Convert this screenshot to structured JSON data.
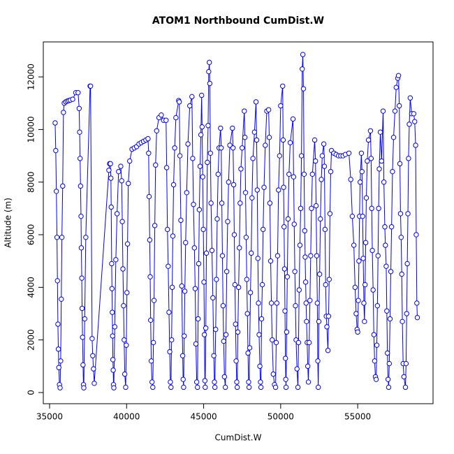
{
  "chart_data": {
    "type": "line",
    "marker": "circle",
    "title": "ATOM1 Northbound CumDist.W",
    "x_label": "CumDist.W",
    "y_label": "Altitude (m)",
    "color": "#0000ff",
    "x": [
      35360,
      35400,
      35440,
      35480,
      35510,
      35540,
      35570,
      35600,
      35640,
      35680,
      35720,
      35760,
      35800,
      35850,
      35900,
      35950,
      36050,
      36150,
      36250,
      36350,
      36500,
      36700,
      36850,
      36920,
      36950,
      36980,
      37010,
      37040,
      37060,
      37090,
      37110,
      37140,
      37170,
      37200,
      37220,
      37280,
      37350,
      37630,
      37660,
      37760,
      37800,
      37850,
      37900,
      38850,
      38900,
      38950,
      38980,
      39000,
      39030,
      39050,
      39070,
      39090,
      39110,
      39130,
      39150,
      39170,
      39230,
      39300,
      39380,
      39480,
      39620,
      39680,
      39720,
      39760,
      39800,
      39840,
      39880,
      39940,
      39980,
      40020,
      40060,
      40110,
      40200,
      40350,
      40500,
      40650,
      40800,
      40950,
      41100,
      41250,
      41390,
      41430,
      41460,
      41500,
      41530,
      41560,
      41600,
      41650,
      41700,
      41740,
      41780,
      41830,
      41880,
      41950,
      42100,
      42250,
      42400,
      42560,
      42600,
      42650,
      42700,
      42750,
      42800,
      42840,
      42880,
      42920,
      42960,
      43000,
      43050,
      43120,
      43200,
      43380,
      43420,
      43460,
      43520,
      43580,
      43640,
      43670,
      43700,
      43740,
      43780,
      43830,
      43900,
      43980,
      44100,
      44240,
      44290,
      44340,
      44400,
      44450,
      44500,
      44550,
      44600,
      44640,
      44680,
      44720,
      44770,
      44820,
      44870,
      44900,
      44940,
      44980,
      45020,
      45050,
      45080,
      45100,
      45140,
      45180,
      45240,
      45290,
      45330,
      45370,
      45400,
      45440,
      45480,
      45540,
      45600,
      45660,
      45700,
      45730,
      45780,
      45830,
      45880,
      45940,
      46000,
      46100,
      46140,
      46180,
      46220,
      46260,
      46300,
      46350,
      46410,
      46450,
      46500,
      46560,
      46620,
      46700,
      46870,
      46910,
      46950,
      46990,
      47030,
      47070,
      47110,
      47150,
      47180,
      47220,
      47270,
      47320,
      47370,
      47420,
      47500,
      47640,
      47680,
      47720,
      47760,
      47800,
      47840,
      47880,
      47920,
      47950,
      47990,
      48040,
      48090,
      48140,
      48200,
      48300,
      48400,
      48440,
      48480,
      48520,
      48560,
      48600,
      48650,
      48690,
      48720,
      48760,
      48810,
      48860,
      48920,
      49000,
      49100,
      49220,
      49260,
      49300,
      49350,
      49400,
      49450,
      49520,
      49600,
      49670,
      49710,
      49750,
      49800,
      49860,
      49930,
      50000,
      50130,
      50160,
      50190,
      50220,
      50250,
      50280,
      50310,
      50330,
      50350,
      50390,
      50430,
      50480,
      50540,
      50620,
      50800,
      50840,
      50880,
      50920,
      50960,
      51000,
      51060,
      51120,
      51160,
      51200,
      51250,
      51300,
      51350,
      51400,
      51440,
      51480,
      51520,
      51560,
      51590,
      51620,
      51650,
      51680,
      51720,
      51760,
      51800,
      51850,
      51900,
      51950,
      52000,
      52060,
      52210,
      52260,
      52300,
      52340,
      52380,
      52410,
      52440,
      52480,
      52530,
      52580,
      52640,
      52700,
      52800,
      52840,
      52880,
      52920,
      52960,
      53000,
      53070,
      53110,
      53150,
      53200,
      53250,
      53300,
      53450,
      53600,
      53750,
      53900,
      54050,
      54200,
      54430,
      54550,
      54650,
      54750,
      54830,
      54900,
      54960,
      55000,
      55040,
      55080,
      55120,
      55160,
      55240,
      55280,
      55320,
      55360,
      55400,
      55440,
      55480,
      55520,
      55560,
      55620,
      55700,
      55830,
      55870,
      55910,
      55950,
      56000,
      56050,
      56100,
      56150,
      56200,
      56240,
      56280,
      56320,
      56360,
      56400,
      56470,
      56550,
      56650,
      56700,
      56760,
      56800,
      56850,
      56890,
      56930,
      56970,
      57010,
      57050,
      57100,
      57150,
      57200,
      57260,
      57330,
      57420,
      57500,
      57600,
      57650,
      57700,
      57740,
      57780,
      57820,
      57860,
      57900,
      57950,
      58000,
      58100,
      58140,
      58180,
      58220,
      58260,
      58300,
      58350,
      58410,
      58500,
      58640,
      58700,
      58760,
      58800,
      58840,
      58870
    ],
    "values": [
      10250,
      9200,
      7650,
      5900,
      4250,
      2600,
      1650,
      950,
      300,
      180,
      1200,
      3550,
      5900,
      7850,
      10650,
      11000,
      11050,
      11080,
      11100,
      11120,
      11150,
      11400,
      11400,
      10800,
      9900,
      8900,
      7850,
      6700,
      5500,
      4350,
      3200,
      2100,
      1050,
      300,
      180,
      2800,
      5900,
      11650,
      11650,
      2050,
      1400,
      900,
      350,
      8450,
      8700,
      8700,
      8150,
      7050,
      4900,
      3950,
      3050,
      2150,
      1250,
      850,
      300,
      180,
      2500,
      5050,
      6800,
      8400,
      8600,
      8050,
      6500,
      4700,
      3300,
      2000,
      700,
      200,
      1800,
      3800,
      5650,
      7950,
      8800,
      9250,
      9300,
      9350,
      9450,
      9500,
      9550,
      9600,
      9650,
      9100,
      7450,
      5800,
      4400,
      2750,
      1200,
      400,
      200,
      1900,
      3500,
      6350,
      8650,
      9950,
      10450,
      10550,
      10350,
      10350,
      8550,
      6200,
      4800,
      3050,
      1550,
      400,
      200,
      2000,
      4000,
      5950,
      7900,
      9300,
      10450,
      11100,
      11050,
      9000,
      6550,
      4050,
      1400,
      500,
      200,
      2150,
      3850,
      5700,
      7600,
      9450,
      10900,
      11250,
      8900,
      7150,
      5500,
      3950,
      1850,
      400,
      200,
      2800,
      4900,
      6950,
      8600,
      9800,
      11300,
      10100,
      8200,
      6200,
      4200,
      2200,
      450,
      200,
      2450,
      5300,
      8750,
      10150,
      12200,
      12550,
      11750,
      9100,
      7200,
      5400,
      3600,
      1400,
      400,
      200,
      2400,
      4300,
      6600,
      8300,
      9300,
      10050,
      9300,
      7200,
      5200,
      3300,
      1950,
      600,
      200,
      2200,
      4600,
      6500,
      8000,
      9400,
      10050,
      9300,
      7900,
      6000,
      4100,
      2600,
      1200,
      400,
      200,
      2300,
      4000,
      5500,
      7200,
      8500,
      9300,
      10700,
      9700,
      7600,
      5900,
      4300,
      3000,
      1500,
      400,
      200,
      1700,
      3800,
      5300,
      7400,
      8900,
      9900,
      11050,
      9600,
      7700,
      5100,
      3400,
      2200,
      1000,
      400,
      200,
      2800,
      4100,
      6200,
      7800,
      9400,
      10700,
      10750,
      9700,
      7200,
      5000,
      3400,
      2000,
      700,
      300,
      200,
      1900,
      3400,
      5200,
      7700,
      9000,
      10900,
      11650,
      9600,
      7800,
      6300,
      4700,
      3100,
      1300,
      500,
      200,
      2300,
      4400,
      6600,
      8300,
      9500,
      10400,
      8200,
      6400,
      4600,
      3300,
      2000,
      900,
      200,
      1900,
      3900,
      5600,
      7000,
      9000,
      12300,
      12850,
      11550,
      8300,
      6150,
      5150,
      4200,
      3400,
      2700,
      1900,
      1000,
      400,
      1900,
      3500,
      5200,
      7000,
      8300,
      9600,
      8800,
      7100,
      5200,
      3400,
      1200,
      200,
      2700,
      4500,
      6600,
      8100,
      9000,
      9450,
      8600,
      6200,
      4100,
      2900,
      2500,
      1600,
      2900,
      4300,
      6800,
      8400,
      9200,
      9100,
      9050,
      9000,
      9000,
      9000,
      9050,
      9100,
      8100,
      6700,
      5600,
      4000,
      3000,
      2400,
      2300,
      3500,
      5000,
      6700,
      8000,
      9100,
      8400,
      6700,
      5100,
      3400,
      2700,
      4100,
      5700,
      7400,
      8800,
      9600,
      9950,
      8900,
      7000,
      5400,
      3900,
      2200,
      1200,
      600,
      500,
      1800,
      3300,
      5200,
      7000,
      8500,
      9900,
      8800,
      10700,
      8000,
      6300,
      5600,
      4800,
      3100,
      1500,
      500,
      200,
      1100,
      2800,
      4600,
      6300,
      8400,
      9700,
      10700,
      11600,
      11950,
      12050,
      10900,
      8700,
      6800,
      5900,
      4500,
      2700,
      1100,
      600,
      200,
      1100,
      3000,
      4900,
      6800,
      8900,
      10200,
      11200,
      10600,
      10600,
      10300,
      9400,
      6000,
      3400,
      2850
    ],
    "xlim": [
      34592,
      59891
    ],
    "ylim": [
      -425,
      13330
    ],
    "xticks": [
      35000,
      40000,
      45000,
      50000,
      55000
    ],
    "yticks": [
      0,
      2000,
      4000,
      6000,
      8000,
      10000,
      12000
    ]
  }
}
